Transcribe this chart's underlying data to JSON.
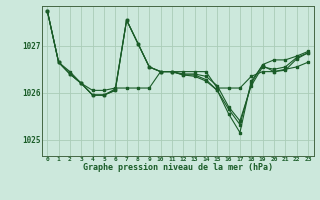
{
  "title": "Graphe pression niveau de la mer (hPa)",
  "background_color": "#cce8dc",
  "grid_color": "#aaccb8",
  "line_color": "#1a5c28",
  "xlim": [
    -0.5,
    23.5
  ],
  "ylim": [
    1024.65,
    1027.85
  ],
  "yticks": [
    1025,
    1026,
    1027
  ],
  "xticks": [
    0,
    1,
    2,
    3,
    4,
    5,
    6,
    7,
    8,
    9,
    10,
    11,
    12,
    13,
    14,
    15,
    16,
    17,
    18,
    19,
    20,
    21,
    22,
    23
  ],
  "series": [
    [
      1027.75,
      1026.65,
      1026.45,
      1026.2,
      1026.05,
      1026.05,
      1026.1,
      1026.1,
      1026.1,
      1026.1,
      1026.45,
      1026.45,
      1026.45,
      1026.45,
      1026.45,
      1026.1,
      1026.1,
      1026.1,
      1026.35,
      1026.45,
      1026.45,
      1026.5,
      1026.55,
      1026.65
    ],
    [
      1027.75,
      1026.65,
      1026.4,
      1026.2,
      1025.95,
      1025.95,
      1026.05,
      1027.55,
      1027.05,
      1026.55,
      1026.45,
      1026.45,
      1026.4,
      1026.4,
      1026.35,
      1026.15,
      1025.7,
      1025.4,
      1026.15,
      1026.55,
      1026.5,
      1026.55,
      1026.75,
      1026.85
    ],
    [
      1027.75,
      1026.65,
      1026.4,
      1026.2,
      1025.95,
      1025.95,
      1026.05,
      1027.55,
      1027.05,
      1026.55,
      1026.45,
      1026.45,
      1026.38,
      1026.38,
      1026.28,
      1026.05,
      1025.65,
      1025.32,
      1026.2,
      1026.6,
      1026.7,
      1026.7,
      1026.78,
      1026.88
    ],
    [
      1027.75,
      1026.65,
      1026.4,
      1026.2,
      1025.95,
      1025.95,
      1026.08,
      1027.55,
      1027.05,
      1026.55,
      1026.45,
      1026.45,
      1026.38,
      1026.35,
      1026.25,
      1026.05,
      1025.55,
      1025.15,
      1026.25,
      1026.58,
      1026.45,
      1026.48,
      1026.72,
      1026.85
    ]
  ]
}
